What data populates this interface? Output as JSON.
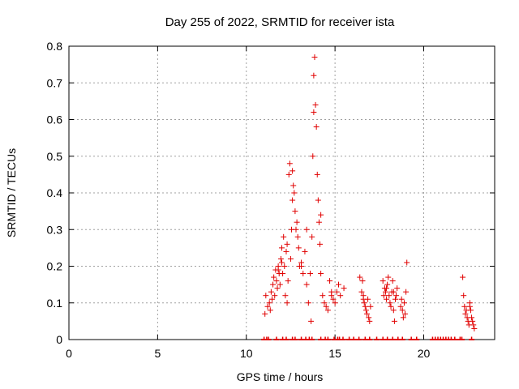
{
  "chart_data": {
    "type": "scatter",
    "title": "Day 255 of 2022, SRMTID for receiver ista",
    "xlabel": "GPS time / hours",
    "ylabel": "SRMTID / TECUs",
    "xlim": [
      0,
      24
    ],
    "ylim": [
      0,
      0.8
    ],
    "xticks": [
      0,
      5,
      10,
      15,
      20
    ],
    "yticks": [
      0,
      0.1,
      0.2,
      0.3,
      0.4,
      0.5,
      0.6,
      0.7,
      0.8
    ],
    "xtick_labels": [
      "0",
      "5",
      "10",
      "15",
      "20"
    ],
    "ytick_labels": [
      "0",
      "0.1",
      "0.2",
      "0.3",
      "0.4",
      "0.5",
      "0.6",
      "0.7",
      "0.8"
    ],
    "grid": true,
    "marker": "+",
    "series_color": "#e00000",
    "series": [
      {
        "name": "SRMTID",
        "x": [
          11.05,
          11.1,
          11.2,
          11.3,
          11.35,
          11.4,
          11.45,
          11.5,
          11.55,
          11.6,
          11.65,
          11.7,
          11.75,
          11.8,
          11.85,
          11.9,
          11.95,
          12.0,
          12.05,
          12.1,
          12.15,
          12.2,
          12.25,
          12.3,
          12.35,
          12.4,
          12.45,
          12.5,
          12.55,
          12.6,
          12.65,
          12.7,
          12.75,
          12.8,
          12.85,
          12.9,
          12.95,
          13.0,
          13.1,
          13.2,
          13.3,
          13.4,
          13.5,
          13.6,
          13.65,
          13.7,
          13.75,
          13.8,
          13.85,
          13.9,
          13.95,
          14.0,
          14.05,
          14.1,
          14.15,
          14.2,
          14.3,
          14.4,
          14.5,
          14.6,
          14.7,
          14.8,
          14.9,
          15.0,
          15.1,
          15.2,
          15.3,
          15.5,
          16.4,
          16.5,
          16.55,
          16.6,
          16.65,
          16.7,
          16.75,
          16.8,
          16.85,
          16.9,
          16.95,
          17.0,
          17.7,
          17.75,
          17.8,
          17.85,
          17.9,
          17.95,
          18.0,
          18.05,
          18.1,
          18.15,
          18.2,
          18.25,
          18.3,
          18.35,
          18.4,
          18.45,
          18.5,
          18.7,
          18.75,
          18.8,
          18.85,
          18.9,
          18.95,
          19.0,
          19.05,
          22.2,
          22.25,
          22.3,
          22.35,
          22.4,
          22.45,
          22.5,
          22.55,
          22.6,
          22.65,
          22.7,
          22.75,
          22.8,
          22.85,
          11.8,
          12.0,
          12.3,
          12.6,
          13.1,
          13.4,
          13.8,
          14.2,
          14.8,
          16.6,
          17.9,
          18.3,
          22.6
        ],
        "y": [
          0.07,
          0.12,
          0.09,
          0.1,
          0.08,
          0.13,
          0.11,
          0.15,
          0.17,
          0.12,
          0.19,
          0.16,
          0.14,
          0.2,
          0.18,
          0.15,
          0.22,
          0.25,
          0.18,
          0.28,
          0.2,
          0.12,
          0.24,
          0.1,
          0.16,
          0.45,
          0.48,
          0.22,
          0.3,
          0.38,
          0.42,
          0.4,
          0.35,
          0.3,
          0.32,
          0.28,
          0.25,
          0.2,
          0.21,
          0.18,
          0.24,
          0.15,
          0.1,
          0.18,
          0.05,
          0.28,
          0.5,
          0.62,
          0.77,
          0.64,
          0.58,
          0.45,
          0.38,
          0.32,
          0.26,
          0.18,
          0.12,
          0.1,
          0.09,
          0.08,
          0.16,
          0.12,
          0.11,
          0.1,
          0.13,
          0.15,
          0.12,
          0.14,
          0.17,
          0.13,
          0.16,
          0.12,
          0.1,
          0.09,
          0.08,
          0.07,
          0.11,
          0.06,
          0.05,
          0.09,
          0.16,
          0.12,
          0.14,
          0.13,
          0.11,
          0.15,
          0.17,
          0.12,
          0.1,
          0.09,
          0.13,
          0.16,
          0.08,
          0.05,
          0.11,
          0.12,
          0.14,
          0.09,
          0.11,
          0.08,
          0.06,
          0.1,
          0.07,
          0.13,
          0.21,
          0.17,
          0.12,
          0.09,
          0.07,
          0.08,
          0.06,
          0.05,
          0.04,
          0.1,
          0.08,
          0.06,
          0.05,
          0.04,
          0.03,
          0.19,
          0.21,
          0.26,
          0.46,
          0.2,
          0.3,
          0.72,
          0.34,
          0.13,
          0.11,
          0.14,
          0.13,
          0.09
        ],
        "zero_markers_x": [
          11.0,
          11.15,
          11.25,
          11.7,
          12.05,
          12.25,
          12.6,
          12.75,
          13.1,
          13.35,
          13.55,
          13.7,
          14.2,
          14.45,
          14.6,
          14.95,
          15.15,
          15.25,
          15.45,
          15.8,
          16.05,
          16.35,
          16.7,
          16.95,
          17.35,
          17.7,
          17.95,
          18.25,
          18.55,
          18.8,
          19.3,
          19.6,
          20.5,
          20.65,
          20.8,
          20.95,
          21.1,
          21.25,
          21.4,
          21.55,
          21.75,
          22.05,
          22.15,
          22.7
        ]
      }
    ]
  }
}
